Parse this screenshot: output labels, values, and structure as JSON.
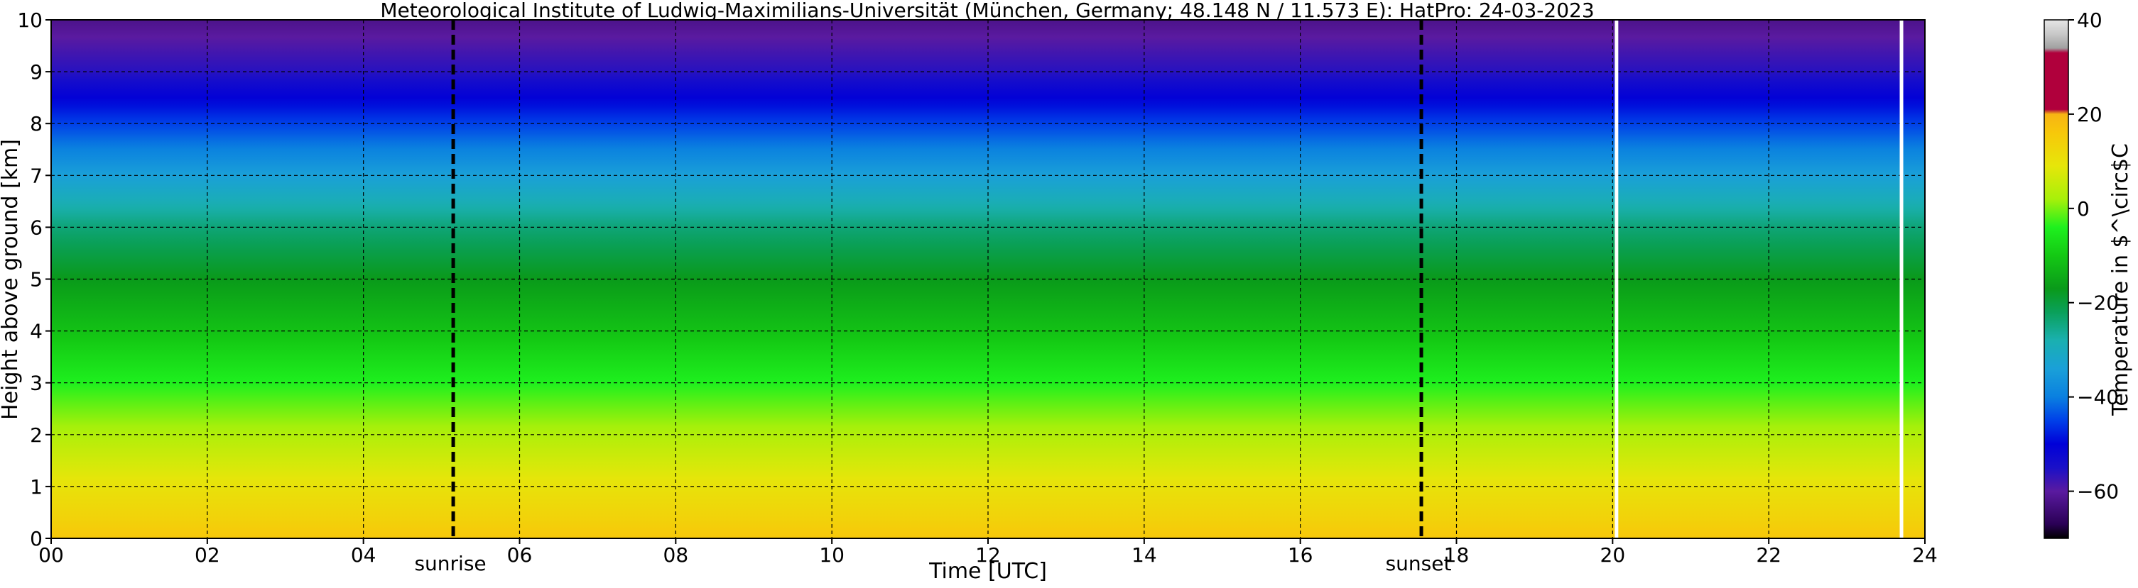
{
  "chart_data": {
    "type": "heatmap",
    "title": "Meteorological Institute of Ludwig-Maximilians-Universität (München, Germany; 48.148 N / 11.573 E):    HatPro: 24-03-2023",
    "xlabel": "Time [UTC]",
    "ylabel": "Height above ground [km]",
    "xlim": [
      0,
      24
    ],
    "ylim": [
      0,
      10
    ],
    "x_ticks": [
      "00",
      "02",
      "04",
      "06",
      "08",
      "10",
      "12",
      "14",
      "16",
      "18",
      "20",
      "22",
      "24"
    ],
    "y_ticks": [
      "0",
      "1",
      "2",
      "3",
      "4",
      "5",
      "6",
      "7",
      "8",
      "9",
      "10"
    ],
    "grid": true,
    "temperature_profile": {
      "heights_km": [
        0,
        1,
        2,
        3,
        4,
        5,
        6,
        7,
        8,
        9,
        10
      ],
      "temperature_c": [
        16,
        10,
        3,
        -4,
        -11,
        -17,
        -24,
        -34,
        -45,
        -56,
        -62
      ]
    },
    "annotations": [
      {
        "label": "sunrise",
        "x": 5.15
      },
      {
        "label": "sunset",
        "x": 17.55
      }
    ],
    "data_gaps": [
      20.05,
      23.7
    ],
    "colorbar": {
      "label": "Temperature in $^\\circ$C",
      "range": [
        -70,
        40
      ],
      "ticks": [
        "−60",
        "−40",
        "−20",
        "0",
        "20",
        "40"
      ],
      "tick_values": [
        -60,
        -40,
        -20,
        0,
        20,
        40
      ],
      "stops": [
        {
          "v": -70,
          "color": "#000000"
        },
        {
          "v": -67,
          "color": "#2a0055"
        },
        {
          "v": -60,
          "color": "#5a1aa0"
        },
        {
          "v": -55,
          "color": "#1a10c8"
        },
        {
          "v": -50,
          "color": "#0000d8"
        },
        {
          "v": -45,
          "color": "#0040e8"
        },
        {
          "v": -40,
          "color": "#0a80e0"
        },
        {
          "v": -34,
          "color": "#1aa0d8"
        },
        {
          "v": -28,
          "color": "#1ab0b0"
        },
        {
          "v": -22,
          "color": "#0aa05a"
        },
        {
          "v": -17,
          "color": "#0a9a1a"
        },
        {
          "v": -10,
          "color": "#14c814"
        },
        {
          "v": -4,
          "color": "#1ef01e"
        },
        {
          "v": 2,
          "color": "#a8f00a"
        },
        {
          "v": 9,
          "color": "#e6e60a"
        },
        {
          "v": 16,
          "color": "#f7c80a"
        },
        {
          "v": 20,
          "color": "#f7b414"
        },
        {
          "v": 21,
          "color": "#b0003c"
        },
        {
          "v": 33,
          "color": "#b0003c"
        },
        {
          "v": 34,
          "color": "#a0a0a0"
        },
        {
          "v": 37,
          "color": "#c8c8c8"
        },
        {
          "v": 40,
          "color": "#e6e6e6"
        }
      ]
    }
  }
}
